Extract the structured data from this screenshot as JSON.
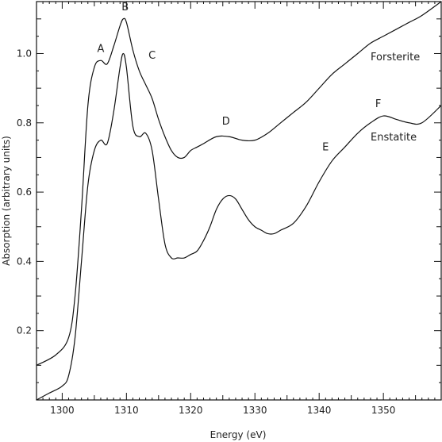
{
  "chart_data": {
    "type": "line",
    "title": "",
    "xlabel": "Energy (eV)",
    "ylabel": "Absorption (arbitrary units)",
    "xlim": [
      1296,
      1359
    ],
    "ylim": [
      0.0,
      1.15
    ],
    "x_ticks": [
      1300,
      1310,
      1320,
      1330,
      1340,
      1350
    ],
    "y_ticks": [
      0.2,
      0.4,
      0.6,
      0.8,
      1.0
    ],
    "x_tick_labels": [
      "1300",
      "1310",
      "1320",
      "1330",
      "1340",
      "1350"
    ],
    "y_tick_labels": [
      "0.2",
      "0.4",
      "0.6",
      "0.8",
      "1.0"
    ],
    "grid": false,
    "series": [
      {
        "name": "Forsterite",
        "x": [
          1296,
          1299,
          1301,
          1302,
          1303,
          1304,
          1305,
          1306,
          1307,
          1308,
          1309,
          1309.5,
          1310,
          1311,
          1312,
          1313,
          1314,
          1315,
          1316,
          1317,
          1318,
          1319,
          1320,
          1321,
          1322,
          1324,
          1326,
          1328,
          1330,
          1332,
          1334,
          1336,
          1338,
          1340,
          1342,
          1344,
          1346,
          1348,
          1350,
          1352,
          1354,
          1356,
          1359
        ],
        "values": [
          0.1,
          0.13,
          0.18,
          0.3,
          0.55,
          0.85,
          0.96,
          0.98,
          0.97,
          1.02,
          1.08,
          1.1,
          1.09,
          1.01,
          0.95,
          0.91,
          0.87,
          0.81,
          0.76,
          0.72,
          0.7,
          0.7,
          0.72,
          0.73,
          0.74,
          0.76,
          0.76,
          0.75,
          0.75,
          0.77,
          0.8,
          0.83,
          0.86,
          0.9,
          0.94,
          0.97,
          1.0,
          1.03,
          1.05,
          1.07,
          1.09,
          1.11,
          1.15
        ]
      },
      {
        "name": "Enstatite",
        "x": [
          1296,
          1298,
          1300,
          1301,
          1302,
          1303,
          1304,
          1305,
          1306,
          1307,
          1308,
          1309,
          1309.5,
          1310,
          1311,
          1312,
          1313,
          1314,
          1315,
          1316,
          1317,
          1318,
          1319,
          1320,
          1321,
          1322,
          1323,
          1324,
          1325,
          1326,
          1327,
          1328,
          1329,
          1330,
          1331,
          1332,
          1333,
          1334,
          1336,
          1338,
          1340,
          1342,
          1344,
          1346,
          1348,
          1350,
          1352,
          1354,
          1356,
          1359
        ],
        "values": [
          0.0,
          0.02,
          0.04,
          0.07,
          0.18,
          0.4,
          0.62,
          0.72,
          0.75,
          0.74,
          0.83,
          0.96,
          1.0,
          0.96,
          0.79,
          0.76,
          0.77,
          0.72,
          0.58,
          0.45,
          0.41,
          0.41,
          0.41,
          0.42,
          0.43,
          0.46,
          0.5,
          0.55,
          0.58,
          0.59,
          0.58,
          0.55,
          0.52,
          0.5,
          0.49,
          0.48,
          0.48,
          0.49,
          0.51,
          0.56,
          0.63,
          0.69,
          0.73,
          0.77,
          0.8,
          0.82,
          0.81,
          0.8,
          0.8,
          0.85
        ]
      }
    ],
    "series_labels": [
      "Forsterite",
      "Enstatite"
    ],
    "annotations": [
      {
        "text": "A",
        "x": 1306.0,
        "y": 1.005
      },
      {
        "text": "B",
        "x": 1309.8,
        "y": 1.125
      },
      {
        "text": "C",
        "x": 1314.0,
        "y": 0.985
      },
      {
        "text": "D",
        "x": 1325.5,
        "y": 0.795
      },
      {
        "text": "E",
        "x": 1341.0,
        "y": 0.72
      },
      {
        "text": "F",
        "x": 1349.2,
        "y": 0.845
      }
    ]
  }
}
